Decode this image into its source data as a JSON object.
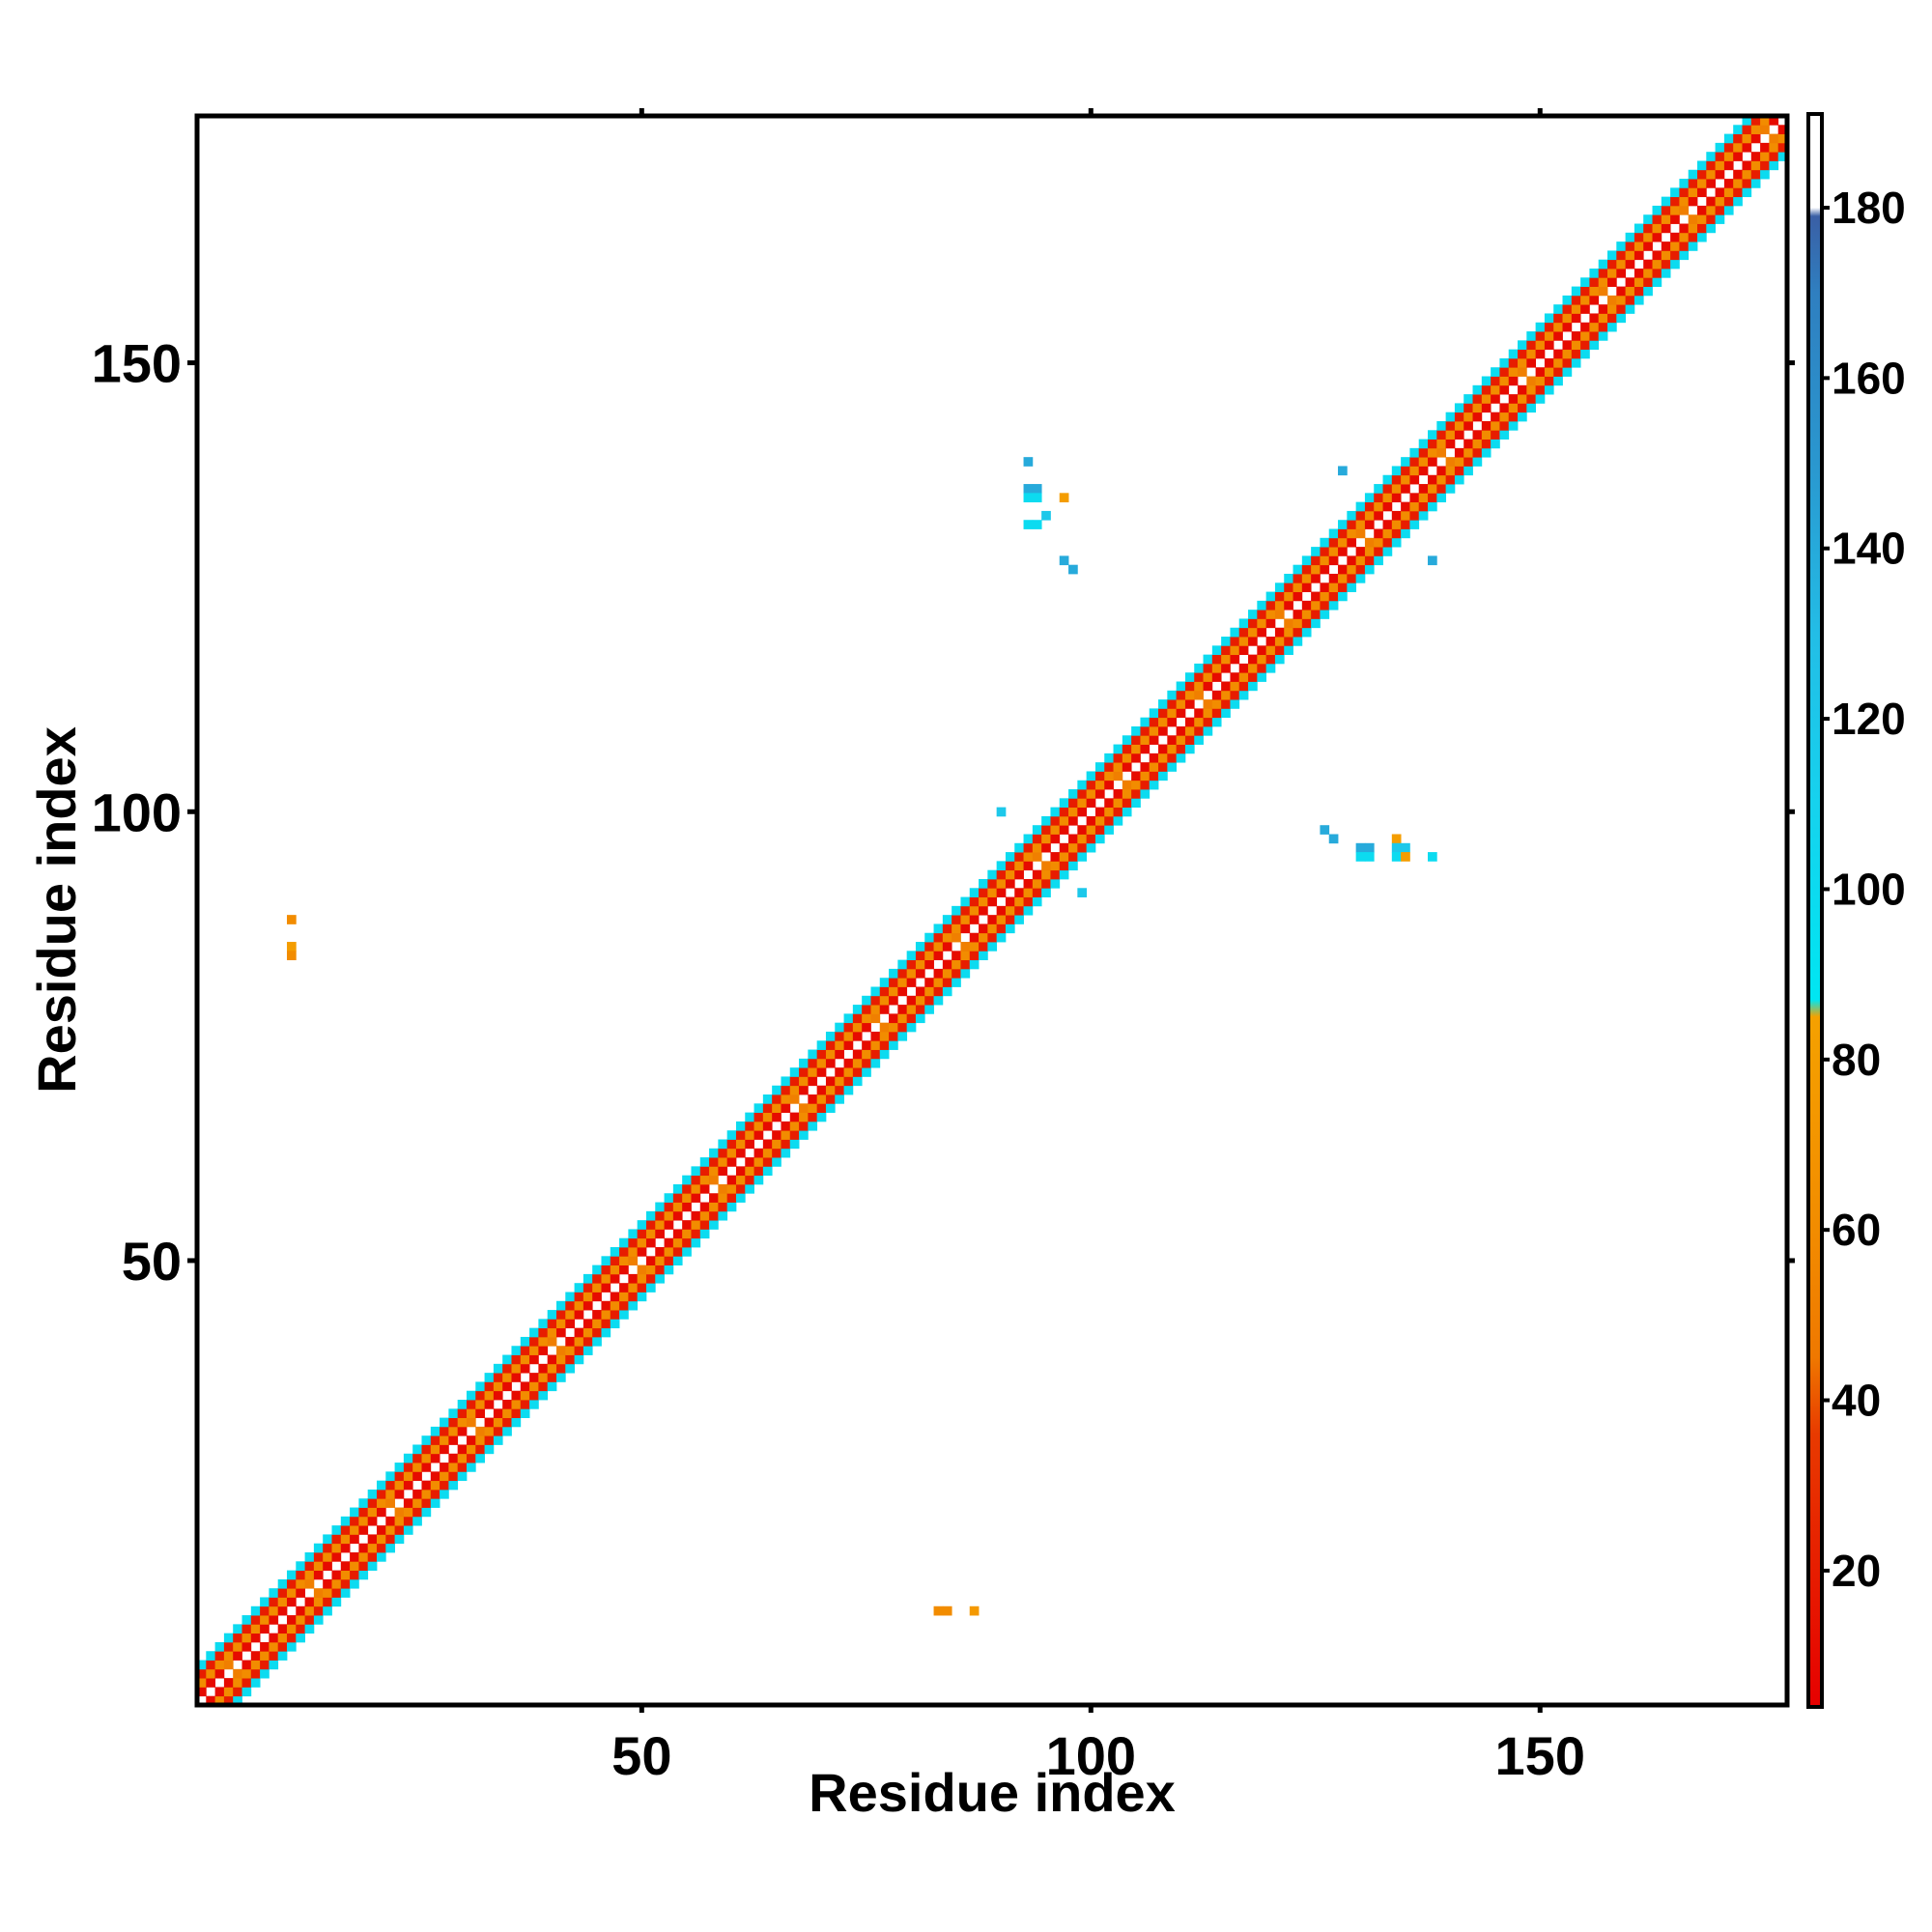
{
  "chart_data": {
    "type": "heatmap",
    "title": "",
    "xlabel": "Residue index",
    "ylabel": "Residue index",
    "xlim": [
      1,
      177
    ],
    "ylim": [
      1,
      177
    ],
    "x_ticks": [
      50,
      100,
      150
    ],
    "y_ticks": [
      50,
      100,
      150
    ],
    "grid": false,
    "description_of_pattern": "",
    "diagonal_band_halfwidth": 4,
    "colorbar": {
      "range": [
        4,
        191
      ],
      "ticks": [
        20,
        40,
        60,
        80,
        100,
        120,
        140,
        160,
        180
      ],
      "stops": [
        {
          "value": 4,
          "color": "#e60000"
        },
        {
          "value": 36,
          "color": "#e83a00"
        },
        {
          "value": 45,
          "color": "#ef7800"
        },
        {
          "value": 60,
          "color": "#f28c00"
        },
        {
          "value": 85,
          "color": "#f5a100"
        },
        {
          "value": 87,
          "color": "#00e6f2"
        },
        {
          "value": 110,
          "color": "#16d2ee"
        },
        {
          "value": 130,
          "color": "#23bde6"
        },
        {
          "value": 150,
          "color": "#2a97cf"
        },
        {
          "value": 170,
          "color": "#2f7fc0"
        },
        {
          "value": 179,
          "color": "#3a5fa5"
        },
        {
          "value": 180,
          "color": "#ffffff"
        },
        {
          "value": 191,
          "color": "#ffffff"
        }
      ]
    },
    "off_diagonal_cells": [
      {
        "x": 11,
        "y": 88,
        "value": 60
      },
      {
        "x": 11,
        "y": 85,
        "value": 80
      },
      {
        "x": 11,
        "y": 84,
        "value": 60
      },
      {
        "x": 83,
        "y": 11,
        "value": 60
      },
      {
        "x": 84,
        "y": 11,
        "value": 60
      },
      {
        "x": 87,
        "y": 11,
        "value": 75
      },
      {
        "x": 93,
        "y": 139,
        "value": 140
      },
      {
        "x": 93,
        "y": 136,
        "value": 140
      },
      {
        "x": 94,
        "y": 136,
        "value": 140
      },
      {
        "x": 93,
        "y": 135,
        "value": 100
      },
      {
        "x": 94,
        "y": 135,
        "value": 100
      },
      {
        "x": 97,
        "y": 135,
        "value": 80
      },
      {
        "x": 93,
        "y": 132,
        "value": 100
      },
      {
        "x": 94,
        "y": 132,
        "value": 100
      },
      {
        "x": 95,
        "y": 133,
        "value": 120
      },
      {
        "x": 97,
        "y": 128,
        "value": 140
      },
      {
        "x": 98,
        "y": 127,
        "value": 140
      },
      {
        "x": 126,
        "y": 98,
        "value": 140
      },
      {
        "x": 127,
        "y": 97,
        "value": 140
      },
      {
        "x": 130,
        "y": 96,
        "value": 140
      },
      {
        "x": 131,
        "y": 96,
        "value": 140
      },
      {
        "x": 130,
        "y": 95,
        "value": 100
      },
      {
        "x": 131,
        "y": 95,
        "value": 100
      },
      {
        "x": 134,
        "y": 97,
        "value": 80
      },
      {
        "x": 134,
        "y": 96,
        "value": 120
      },
      {
        "x": 135,
        "y": 96,
        "value": 120
      },
      {
        "x": 134,
        "y": 95,
        "value": 100
      },
      {
        "x": 135,
        "y": 95,
        "value": 80
      },
      {
        "x": 138,
        "y": 95,
        "value": 100
      },
      {
        "x": 90,
        "y": 100,
        "value": 120
      },
      {
        "x": 99,
        "y": 91,
        "value": 120
      },
      {
        "x": 128,
        "y": 138,
        "value": 140
      },
      {
        "x": 138,
        "y": 128,
        "value": 140
      }
    ]
  }
}
